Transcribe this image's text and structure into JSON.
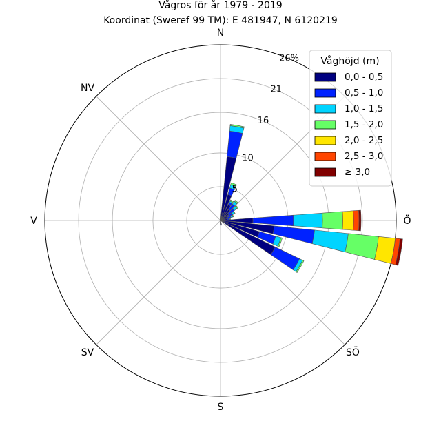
{
  "chart_data": {
    "type": "polar-bar",
    "title": "Vågros för år 1979 - 2019",
    "subtitle": "Koordinat (Sweref 99 TM): E 481947, N 6120219",
    "directions": [
      "N",
      "Ö",
      "S",
      "V",
      "NV",
      "SV",
      "SÖ"
    ],
    "radial_ticks": [
      "5",
      "10",
      "16",
      "21",
      "26%"
    ],
    "radial_tick_values": [
      5,
      10,
      16,
      21,
      26
    ],
    "r_max": 26,
    "legend_title": "Våghöjd (m)",
    "legend_placement": "top-right",
    "bins": [
      "0,0 - 0,5",
      "0,5 - 1,0",
      "1,0 - 1,5",
      "1,5 - 2,0",
      "2,0 - 2,5",
      "2,5 - 3,0",
      "≥ 3,0"
    ],
    "bin_colors": [
      "#000080",
      "#0022ff",
      "#00d4ff",
      "#66ff66",
      "#ffe600",
      "#ff4500",
      "#800000"
    ],
    "sectors": [
      {
        "angle": 10,
        "values": [
          9.5,
          3.8,
          0.8,
          0.2,
          0,
          0,
          0
        ]
      },
      {
        "angle": 20,
        "values": [
          4.0,
          1.0,
          0.5,
          0.3,
          0,
          0,
          0
        ]
      },
      {
        "angle": 30,
        "values": [
          2.6,
          0.4,
          0.2,
          0.2,
          0,
          0,
          0
        ]
      },
      {
        "angle": 40,
        "values": [
          2.0,
          1.0,
          0.5,
          0.2,
          0,
          0,
          0
        ]
      },
      {
        "angle": 50,
        "values": [
          1.5,
          1.0,
          0.5,
          0.2,
          0,
          0,
          0
        ]
      },
      {
        "angle": 60,
        "values": [
          1.2,
          0.8,
          0.3,
          0.1,
          0,
          0,
          0
        ]
      },
      {
        "angle": 70,
        "values": [
          1.0,
          0.6,
          0.3,
          0.1,
          0,
          0,
          0
        ]
      },
      {
        "angle": 80,
        "values": [
          1.0,
          0.3,
          0.1,
          0.1,
          0,
          0,
          0
        ]
      },
      {
        "angle": 90,
        "values": [
          4.8,
          6.0,
          4.3,
          3.0,
          1.6,
          0.8,
          0.3
        ]
      },
      {
        "angle": 100,
        "values": [
          8.0,
          6.0,
          5.0,
          4.5,
          2.5,
          0.7,
          0.4
        ]
      },
      {
        "angle": 110,
        "values": [
          6.0,
          2.5,
          0.8,
          0.2,
          0,
          0,
          0
        ]
      },
      {
        "angle": 120,
        "values": [
          9.0,
          4.0,
          0.5,
          0.2,
          0,
          0,
          0
        ]
      },
      {
        "angle": 170,
        "values": [
          0.5,
          0.2,
          0,
          0,
          0,
          0,
          0
        ]
      },
      {
        "angle": 180,
        "values": [
          0.3,
          0.1,
          0,
          0,
          0,
          0,
          0
        ]
      }
    ]
  }
}
